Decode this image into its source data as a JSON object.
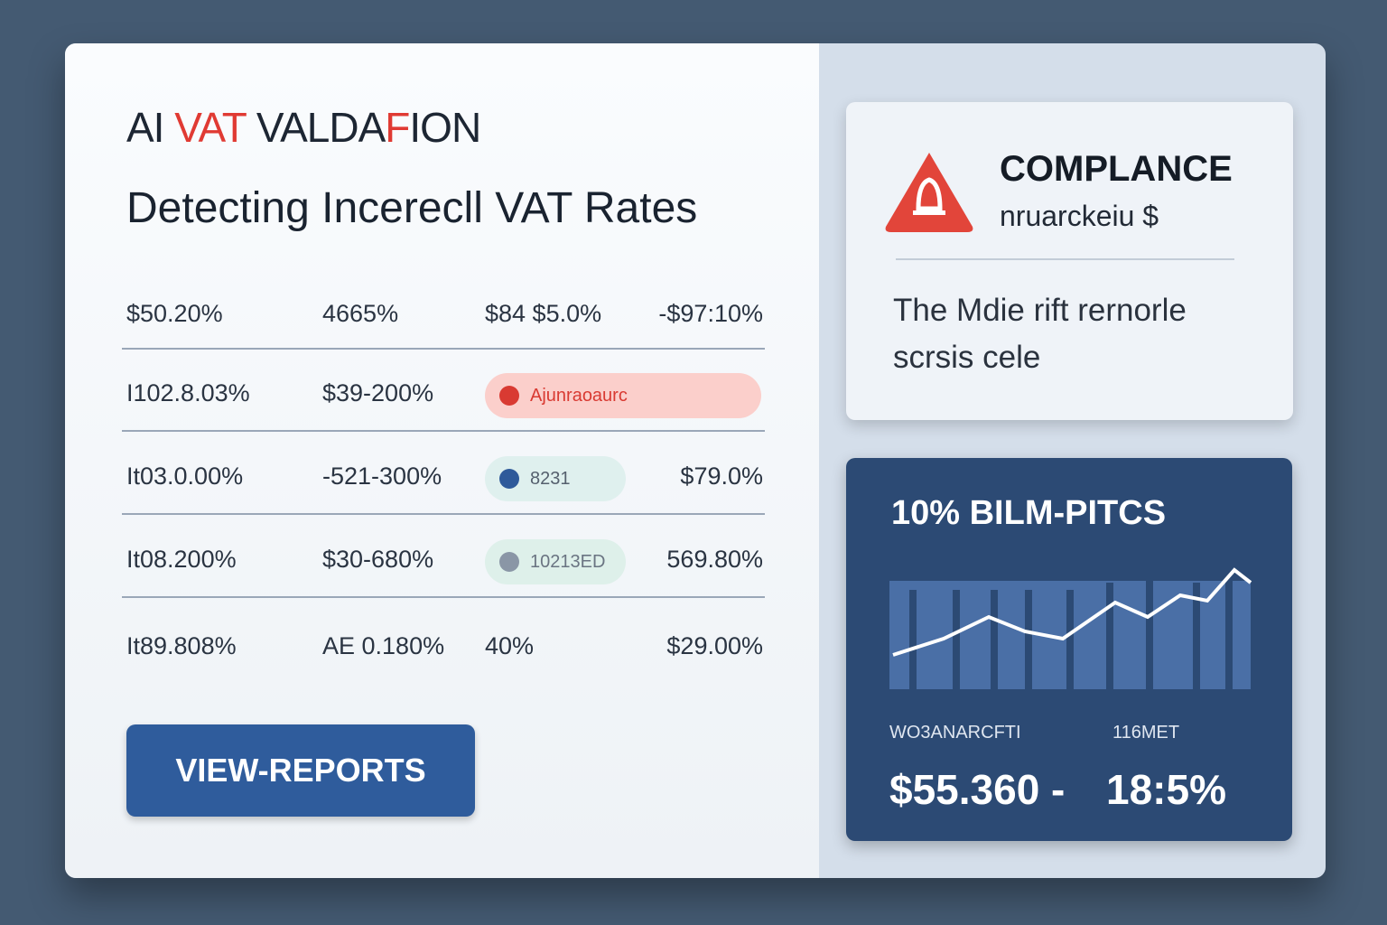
{
  "header": {
    "title_parts": [
      "AI ",
      "VAT",
      " VALDA",
      "F",
      "ION"
    ],
    "subtitle": "Detecting Incerecll VAT Rates"
  },
  "table": {
    "header": [
      "$50.20%",
      "4665%",
      "$84 $5.0%",
      "-$97:10%"
    ],
    "rows": [
      [
        "I102.8.03%",
        "$39-200%",
        {
          "badge": "Ajunraoaurc",
          "tone": "red"
        }
      ],
      [
        "It03.0.00%",
        "-521-300%",
        {
          "badge": "8231",
          "tone": "blue"
        },
        "$79.0%"
      ],
      [
        "It08.200%",
        "$30-680%",
        {
          "badge": "10213ED",
          "tone": "gray"
        },
        "569.80%"
      ],
      [
        "It89.808%",
        "AE 0.180%",
        "40%",
        "$29.00%"
      ]
    ]
  },
  "button": "VIEW-REPORTS",
  "alert": {
    "title": "COMPLANCE",
    "subtitle": "nruarckeiu $",
    "body": "The Mdie rift rernorle scrsis cele"
  },
  "stats": {
    "title": "10% BILM-PITCS",
    "labels": [
      "WO3ANARCFTI",
      "116MET"
    ],
    "values": [
      "$55.360 -",
      "18:5%"
    ]
  }
}
